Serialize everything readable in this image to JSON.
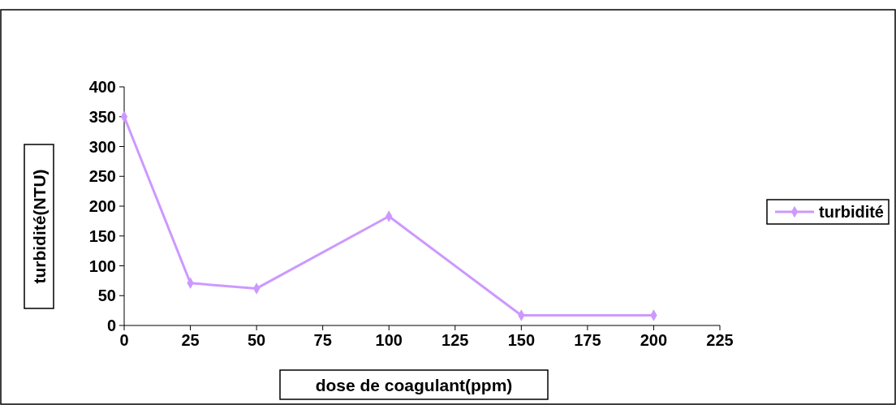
{
  "chart_data": {
    "type": "line",
    "xlabel": "dose de coagulant(ppm)",
    "ylabel": "turbidité(NTU)",
    "x": [
      0,
      25,
      50,
      100,
      150,
      200
    ],
    "series": [
      {
        "name": "turbidité",
        "color": "#cc99ff",
        "values": [
          350,
          71,
          62,
          183,
          17,
          17
        ]
      }
    ],
    "xlim": [
      0,
      225
    ],
    "xticks": [
      0,
      25,
      50,
      75,
      100,
      125,
      150,
      175,
      200,
      225
    ],
    "ylim": [
      0,
      400
    ],
    "yticks": [
      0,
      50,
      100,
      150,
      200,
      250,
      300,
      350,
      400
    ],
    "grid": false,
    "legend": "right",
    "marker": "diamond",
    "line_style": "solid"
  }
}
